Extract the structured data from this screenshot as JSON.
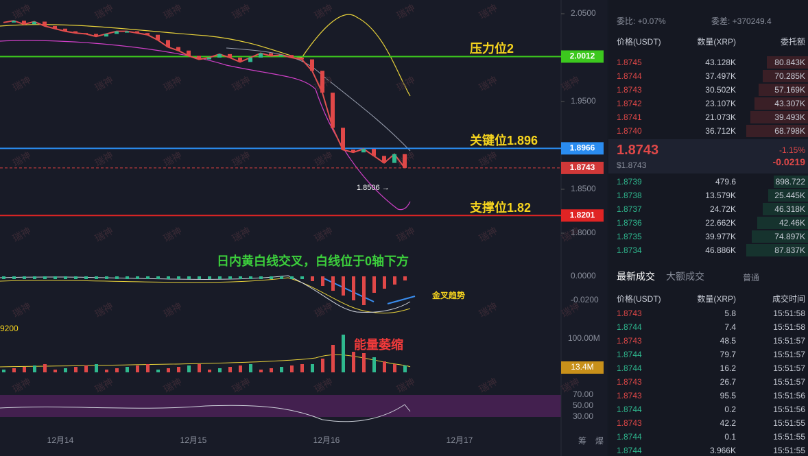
{
  "chart": {
    "watermark": "瑞神",
    "price_ticks": [
      {
        "value": 2.05,
        "label": "2.0500"
      },
      {
        "value": 1.95,
        "label": "1.9500"
      },
      {
        "value": 1.85,
        "label": "1.8500"
      },
      {
        "value": 1.8,
        "label": "1.8000"
      }
    ],
    "levels": [
      {
        "label": "压力位2",
        "value": 2.0012,
        "value_label": "2.0012",
        "color": "#3cc81e"
      },
      {
        "label": "关键位1.896",
        "value": 1.8966,
        "value_label": "1.8966",
        "color": "#2a8cf0"
      },
      {
        "label": "支撑位1.82",
        "value": 1.8201,
        "value_label": "1.8201",
        "color": "#e02424"
      }
    ],
    "current_price": {
      "value": 1.8743,
      "label": "1.8743"
    },
    "low_marker": "1.8506 →",
    "closes": [
      2.04,
      2.042,
      2.038,
      2.041,
      2.036,
      2.033,
      2.03,
      2.028,
      2.027,
      2.024,
      2.027,
      2.03,
      2.03,
      2.028,
      2.026,
      2.02,
      2.012,
      2.008,
      2.002,
      1.998,
      2.0,
      2.004,
      2.0,
      1.995,
      2.0,
      2.005,
      2.002,
      2.003,
      2.0,
      1.998,
      1.985,
      1.96,
      1.92,
      1.895,
      1.892,
      1.896,
      1.888,
      1.88,
      1.89,
      1.8743
    ],
    "macd_note": "日内黄白线交叉，白线位于0轴下方",
    "macd_ticks": [
      "0.0000",
      "-0.0200"
    ],
    "trend_note": "金叉趋势",
    "left_label": "9200",
    "volume_note": "能量萎缩",
    "volume_tick": "100.00M",
    "volume_current": "13.4M",
    "rsi_ticks": [
      "70.00",
      "50.00",
      "30.00"
    ],
    "dates": [
      "12月14",
      "12月15",
      "12月16",
      "12月17"
    ],
    "corner": [
      "筹",
      "爆"
    ]
  },
  "orderbook": {
    "ratio": "委比: +0.07%",
    "diff": "委差: +370249.4",
    "header": [
      "价格(USDT)",
      "数量(XRP)",
      "委托额"
    ],
    "asks": [
      [
        "1.8745",
        "43.128K",
        "80.843K"
      ],
      [
        "1.8744",
        "37.497K",
        "70.285K"
      ],
      [
        "1.8743",
        "30.502K",
        "57.169K"
      ],
      [
        "1.8742",
        "23.107K",
        "43.307K"
      ],
      [
        "1.8741",
        "21.073K",
        "39.493K"
      ],
      [
        "1.8740",
        "36.712K",
        "68.798K"
      ]
    ],
    "mid": {
      "price": "1.8743",
      "usd": "$1.8743",
      "change_pct": "-1.15%",
      "change": "-0.0219"
    },
    "bids": [
      [
        "1.8739",
        "479.6",
        "898.722"
      ],
      [
        "1.8738",
        "13.579K",
        "25.445K"
      ],
      [
        "1.8737",
        "24.72K",
        "46.318K"
      ],
      [
        "1.8736",
        "22.662K",
        "42.46K"
      ],
      [
        "1.8735",
        "39.977K",
        "74.897K"
      ],
      [
        "1.8734",
        "46.886K",
        "87.837K"
      ]
    ]
  },
  "trades": {
    "tabs": [
      "最新成交",
      "大额成交",
      "普通"
    ],
    "header": [
      "价格(USDT)",
      "数量(XRP)",
      "成交时间"
    ],
    "rows": [
      [
        "1.8743",
        "5.8",
        "15:51:58"
      ],
      [
        "1.8744",
        "7.4",
        "15:51:58"
      ],
      [
        "1.8743",
        "48.5",
        "15:51:57"
      ],
      [
        "1.8744",
        "79.7",
        "15:51:57"
      ],
      [
        "1.8744",
        "16.2",
        "15:51:57"
      ],
      [
        "1.8743",
        "26.7",
        "15:51:57"
      ],
      [
        "1.8743",
        "95.5",
        "15:51:56"
      ],
      [
        "1.8744",
        "0.2",
        "15:51:56"
      ],
      [
        "1.8743",
        "42.2",
        "15:51:55"
      ],
      [
        "1.8744",
        "0.1",
        "15:51:55"
      ],
      [
        "1.8744",
        "3.966K",
        "15:51:55"
      ]
    ]
  }
}
